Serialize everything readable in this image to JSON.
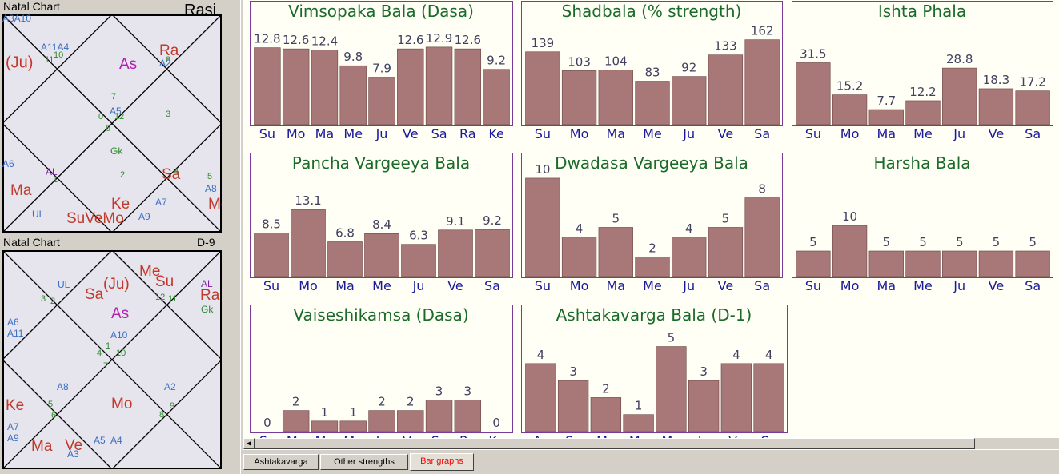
{
  "left": {
    "rasi": {
      "header_left": "Natal Chart",
      "header_right": "Rasi",
      "labels": [
        {
          "t": "A11A4",
          "c": "#3a6fc4",
          "s": 12
        },
        {
          "t": "10",
          "c": "#2e8b2e",
          "s": 11
        },
        {
          "t": "11",
          "c": "#2e8b2e",
          "s": 11
        },
        {
          "t": "(Ju)",
          "c": "#c0392b",
          "s": 20
        },
        {
          "t": "As",
          "c": "#b020b0",
          "s": 19
        },
        {
          "t": "Ra",
          "c": "#c0392b",
          "s": 19
        },
        {
          "t": "A2",
          "c": "#3a6fc4",
          "s": 12
        },
        {
          "t": "8",
          "c": "#2e8b2e",
          "s": 11
        },
        {
          "t": "7",
          "c": "#2e8b2e",
          "s": 11
        },
        {
          "t": "A5",
          "c": "#3a6fc4",
          "s": 12
        },
        {
          "t": "0",
          "c": "#2e8b2e",
          "s": 11
        },
        {
          "t": "12",
          "c": "#2e8b2e",
          "s": 11
        },
        {
          "t": "6",
          "c": "#2e8b2e",
          "s": 11
        },
        {
          "t": "3",
          "c": "#2e8b2e",
          "s": 11
        },
        {
          "t": "Gk",
          "c": "#2e8b2e",
          "s": 12
        },
        {
          "t": "A6",
          "c": "#3a6fc4",
          "s": 12
        },
        {
          "t": "AL",
          "c": "#7a20a0",
          "s": 12
        },
        {
          "t": "1",
          "c": "#2e8b2e",
          "s": 11
        },
        {
          "t": "2",
          "c": "#2e8b2e",
          "s": 11
        },
        {
          "t": "Sa",
          "c": "#c0392b",
          "s": 19
        },
        {
          "t": "4",
          "c": "#2e8b2e",
          "s": 11
        },
        {
          "t": "5",
          "c": "#2e8b2e",
          "s": 11
        },
        {
          "t": "Ma",
          "c": "#c0392b",
          "s": 19
        },
        {
          "t": "A8",
          "c": "#3a6fc4",
          "s": 12
        },
        {
          "t": "A7",
          "c": "#3a6fc4",
          "s": 12
        },
        {
          "t": "Me",
          "c": "#c0392b",
          "s": 19
        },
        {
          "t": "UL",
          "c": "#3a6fc4",
          "s": 12
        },
        {
          "t": "Ke",
          "c": "#c0392b",
          "s": 19
        },
        {
          "t": "A9",
          "c": "#3a6fc4",
          "s": 12
        },
        {
          "t": "SuVeMo",
          "c": "#c0392b",
          "s": 19
        },
        {
          "t": "A3A10",
          "c": "#3a6fc4",
          "s": 12
        }
      ]
    },
    "d9": {
      "header_left": "Natal Chart",
      "header_right": "D-9",
      "labels": [
        {
          "t": "UL",
          "c": "#3a6fc4",
          "s": 12
        },
        {
          "t": "Sa",
          "c": "#c0392b",
          "s": 19
        },
        {
          "t": "(Ju)",
          "c": "#c0392b",
          "s": 19
        },
        {
          "t": "Me",
          "c": "#c0392b",
          "s": 19
        },
        {
          "t": "Su",
          "c": "#c0392b",
          "s": 19
        },
        {
          "t": "AL",
          "c": "#7a20a0",
          "s": 12
        },
        {
          "t": "Ra",
          "c": "#c0392b",
          "s": 19
        },
        {
          "t": "Gk",
          "c": "#2e8b2e",
          "s": 12
        },
        {
          "t": "3",
          "c": "#2e8b2e",
          "s": 11
        },
        {
          "t": "2",
          "c": "#2e8b2e",
          "s": 11
        },
        {
          "t": "As",
          "c": "#b020b0",
          "s": 19
        },
        {
          "t": "12",
          "c": "#2e8b2e",
          "s": 11
        },
        {
          "t": "11",
          "c": "#2e8b2e",
          "s": 11
        },
        {
          "t": "A6",
          "c": "#3a6fc4",
          "s": 12
        },
        {
          "t": "A11",
          "c": "#3a6fc4",
          "s": 12
        },
        {
          "t": "A10",
          "c": "#3a6fc4",
          "s": 12
        },
        {
          "t": "1",
          "c": "#2e8b2e",
          "s": 11
        },
        {
          "t": "4",
          "c": "#2e8b2e",
          "s": 11
        },
        {
          "t": "10",
          "c": "#2e8b2e",
          "s": 11
        },
        {
          "t": "7",
          "c": "#2e8b2e",
          "s": 11
        },
        {
          "t": "A8",
          "c": "#3a6fc4",
          "s": 12
        },
        {
          "t": "A2",
          "c": "#3a6fc4",
          "s": 12
        },
        {
          "t": "Ke",
          "c": "#c0392b",
          "s": 19
        },
        {
          "t": "5",
          "c": "#2e8b2e",
          "s": 11
        },
        {
          "t": "6",
          "c": "#2e8b2e",
          "s": 11
        },
        {
          "t": "Mo",
          "c": "#c0392b",
          "s": 19
        },
        {
          "t": "8",
          "c": "#2e8b2e",
          "s": 11
        },
        {
          "t": "9",
          "c": "#2e8b2e",
          "s": 11
        },
        {
          "t": "A7",
          "c": "#3a6fc4",
          "s": 12
        },
        {
          "t": "A9",
          "c": "#3a6fc4",
          "s": 12
        },
        {
          "t": "Ma",
          "c": "#c0392b",
          "s": 19
        },
        {
          "t": "Ve",
          "c": "#c0392b",
          "s": 19
        },
        {
          "t": "A3",
          "c": "#3a6fc4",
          "s": 12
        },
        {
          "t": "A5",
          "c": "#3a6fc4",
          "s": 12
        },
        {
          "t": "A4",
          "c": "#3a6fc4",
          "s": 12
        }
      ]
    }
  },
  "colors": {
    "bar": "#a87878",
    "title": "#1a6b2a",
    "value": "#404060",
    "tick": "#1a1a9a",
    "panel_border": "#7a3a9a",
    "panel_bg": "#fffff5",
    "axis": "#606060"
  },
  "scrollbar": {
    "left_arrow": "◀"
  },
  "tabs": [
    {
      "label": "Ashtakavarga",
      "active": false
    },
    {
      "label": "Other strengths",
      "active": false
    },
    {
      "label": "Bar graphs",
      "active": true
    }
  ],
  "chart_data": [
    {
      "type": "bar",
      "title": "Vimsopaka Bala (Dasa)",
      "categories": [
        "Su",
        "Mo",
        "Ma",
        "Me",
        "Ju",
        "Ve",
        "Sa",
        "Ra",
        "Ke"
      ],
      "values": [
        12.8,
        12.6,
        12.4,
        9.8,
        7.9,
        12.6,
        12.9,
        12.6,
        9.2
      ],
      "value_labels": [
        "12.8",
        "12.6",
        "12.4",
        "9.8",
        "7.9",
        "12.6",
        "12.9",
        "12.6",
        "9.2"
      ],
      "ylim": [
        0,
        17
      ]
    },
    {
      "type": "bar",
      "title": "Shadbala (% strength)",
      "categories": [
        "Su",
        "Mo",
        "Ma",
        "Me",
        "Ju",
        "Ve",
        "Sa"
      ],
      "values": [
        139,
        103,
        104,
        83,
        92,
        133,
        162
      ],
      "value_labels": [
        "139",
        "103",
        "104",
        "83",
        "92",
        "133",
        "162"
      ],
      "ylim": [
        0,
        195
      ]
    },
    {
      "type": "bar",
      "title": "Ishta Phala",
      "categories": [
        "Su",
        "Mo",
        "Ma",
        "Me",
        "Ju",
        "Ve",
        "Sa"
      ],
      "values": [
        31.5,
        15.2,
        7.7,
        12.2,
        28.8,
        18.3,
        17.2
      ],
      "value_labels": [
        "31.5",
        "15.2",
        "7.7",
        "12.2",
        "28.8",
        "18.3",
        "17.2"
      ],
      "ylim": [
        0,
        52
      ]
    },
    {
      "type": "bar",
      "title": "Pancha Vargeeya Bala",
      "categories": [
        "Su",
        "Mo",
        "Ma",
        "Me",
        "Ju",
        "Ve",
        "Sa"
      ],
      "values": [
        8.5,
        13.1,
        6.8,
        8.4,
        6.3,
        9.1,
        9.2
      ],
      "value_labels": [
        "8.5",
        "13.1",
        "6.8",
        "8.4",
        "6.3",
        "9.1",
        "9.2"
      ],
      "ylim": [
        0,
        20
      ]
    },
    {
      "type": "bar",
      "title": "Dwadasa Vargeeya Bala",
      "categories": [
        "Su",
        "Mo",
        "Ma",
        "Me",
        "Ju",
        "Ve",
        "Sa"
      ],
      "values": [
        10,
        4,
        5,
        2,
        4,
        5,
        8
      ],
      "value_labels": [
        "10",
        "4",
        "5",
        "2",
        "4",
        "5",
        "8"
      ],
      "ylim": [
        0,
        10.4
      ]
    },
    {
      "type": "bar",
      "title": "Harsha Bala",
      "categories": [
        "Su",
        "Mo",
        "Ma",
        "Me",
        "Ju",
        "Ve",
        "Sa"
      ],
      "values": [
        5,
        10,
        5,
        5,
        5,
        5,
        5
      ],
      "value_labels": [
        "5",
        "10",
        "5",
        "5",
        "5",
        "5",
        "5"
      ],
      "ylim": [
        0,
        20
      ]
    },
    {
      "type": "bar",
      "title": "Vaiseshikamsa (Dasa)",
      "categories": [
        "Su",
        "Mo",
        "Ma",
        "Me",
        "Ju",
        "Ve",
        "Sa",
        "Ra",
        "Ke"
      ],
      "values": [
        0,
        2,
        1,
        1,
        2,
        2,
        3,
        3,
        0
      ],
      "value_labels": [
        "0",
        "2",
        "1",
        "1",
        "2",
        "2",
        "3",
        "3",
        "0"
      ],
      "ylim": [
        0,
        10
      ]
    },
    {
      "type": "bar",
      "title": "Ashtakavarga Bala (D-1)",
      "categories": [
        "As",
        "Su",
        "Mo",
        "Ma",
        "Me",
        "Ju",
        "Ve",
        "Sa"
      ],
      "values": [
        4,
        3,
        2,
        1,
        5,
        3,
        4,
        4
      ],
      "value_labels": [
        "4",
        "3",
        "2",
        "1",
        "5",
        "3",
        "4",
        "4"
      ],
      "ylim": [
        0,
        6.2
      ]
    }
  ]
}
